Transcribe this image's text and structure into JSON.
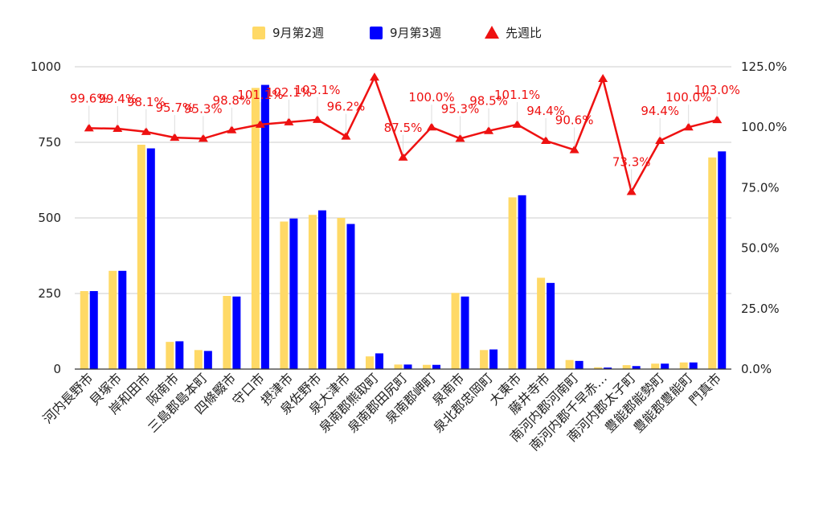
{
  "chart_data": {
    "type": "bar",
    "categories": [
      "河内長野市",
      "貝塚市",
      "岸和田市",
      "阪南市",
      "三島郡島本町",
      "四條畷市",
      "守口市",
      "摂津市",
      "泉佐野市",
      "泉大津市",
      "泉南郡熊取町",
      "泉南郡田尻町",
      "泉南郡岬町",
      "泉南市",
      "泉北郡忠岡町",
      "大東市",
      "藤井寺市",
      "南河内郡河南町",
      "南河内郡千早赤…",
      "南河内郡太子町",
      "豊能郡能勢町",
      "豊能郡豊能町",
      "門真市"
    ],
    "series": [
      {
        "name": "9月第2週",
        "type": "bar",
        "axis": "left",
        "color": "#ffd966",
        "values": [
          258,
          325,
          742,
          90,
          63,
          242,
          930,
          488,
          510,
          500,
          42,
          15,
          14,
          252,
          63,
          568,
          302,
          30,
          6,
          13,
          18,
          22,
          700
        ]
      },
      {
        "name": "9月第3週",
        "type": "bar",
        "axis": "left",
        "color": "#0000ff",
        "values": [
          258,
          325,
          730,
          92,
          60,
          240,
          940,
          498,
          525,
          480,
          52,
          15,
          14,
          240,
          65,
          575,
          285,
          27,
          5,
          10,
          18,
          22,
          720
        ]
      },
      {
        "name": "先週比",
        "type": "line",
        "axis": "right",
        "color": "#ee1111",
        "values": [
          99.6,
          99.4,
          98.1,
          95.7,
          95.3,
          98.8,
          101.1,
          102.1,
          103.1,
          96.2,
          120.6,
          87.5,
          100.0,
          95.3,
          98.5,
          101.1,
          94.4,
          90.6,
          120.0,
          73.3,
          94.4,
          100.0,
          103.0
        ]
      }
    ],
    "point_labels": [
      "99.6%",
      "99.4%",
      "98.1%",
      "95.7%",
      "95.3%",
      "98.8%",
      "101.1%",
      "102.1%",
      "103.1%",
      "96.2%",
      "",
      "87.5%",
      "100.0%",
      "95.3%",
      "98.5%",
      "101.1%",
      "94.4%",
      "90.6%",
      "",
      "73.3%",
      "94.4%",
      "100.0%",
      "103.0%"
    ],
    "y_left": {
      "min": 0,
      "max": 1000,
      "ticks": [
        "0",
        "250",
        "500",
        "750",
        "1000"
      ]
    },
    "y_right": {
      "min": 0,
      "max": 125,
      "ticks": [
        "0.0%",
        "25.0%",
        "50.0%",
        "75.0%",
        "100.0%",
        "125.0%"
      ]
    },
    "legend_position": "top",
    "grid": true
  }
}
